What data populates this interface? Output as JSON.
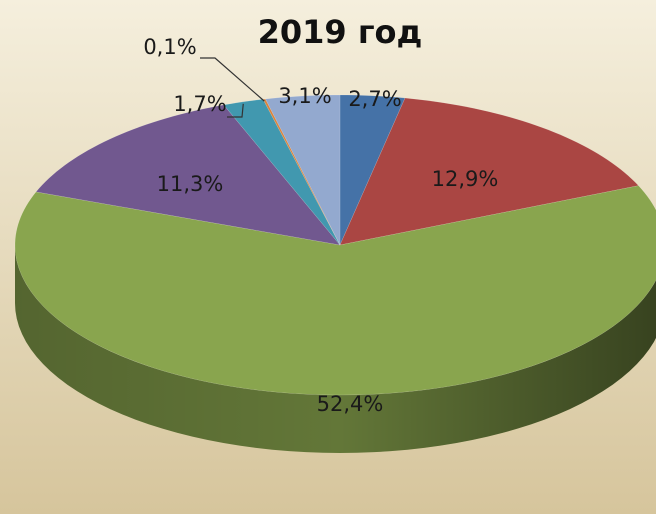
{
  "chart_data": {
    "type": "pie3d",
    "title": "2019 год",
    "values": [
      2.7,
      12.9,
      52.4,
      11.3,
      1.7,
      0.1,
      3.1
    ],
    "value_labels": [
      "2,7%",
      "12,9%",
      "52,4%",
      "11,3%",
      "1,7%",
      "0,1%",
      "3,1%"
    ],
    "colors": [
      "#4572a7",
      "#aa4643",
      "#89a54e",
      "#71588f",
      "#4198af",
      "#db843d",
      "#93a9cf"
    ]
  }
}
